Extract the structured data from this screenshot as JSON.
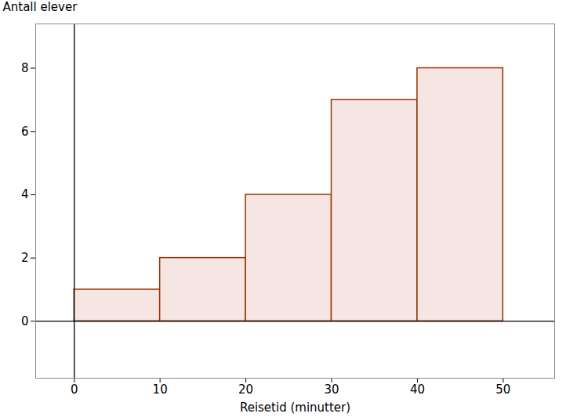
{
  "chart_data": {
    "type": "histogram",
    "x_label": "Reisetid (minutter)",
    "y_label": "Antall elever",
    "bins": [
      0,
      10,
      20,
      30,
      40,
      50
    ],
    "values": [
      1,
      2,
      4,
      7,
      8
    ],
    "color": "#f5e6e3",
    "xlim": [
      -4.5,
      56
    ],
    "xticks": [
      0,
      10,
      20,
      30,
      40,
      50
    ],
    "ylim": [
      -1.8,
      9.4
    ],
    "yticks": [
      0,
      2,
      4,
      6,
      8
    ],
    "grid": false
  }
}
